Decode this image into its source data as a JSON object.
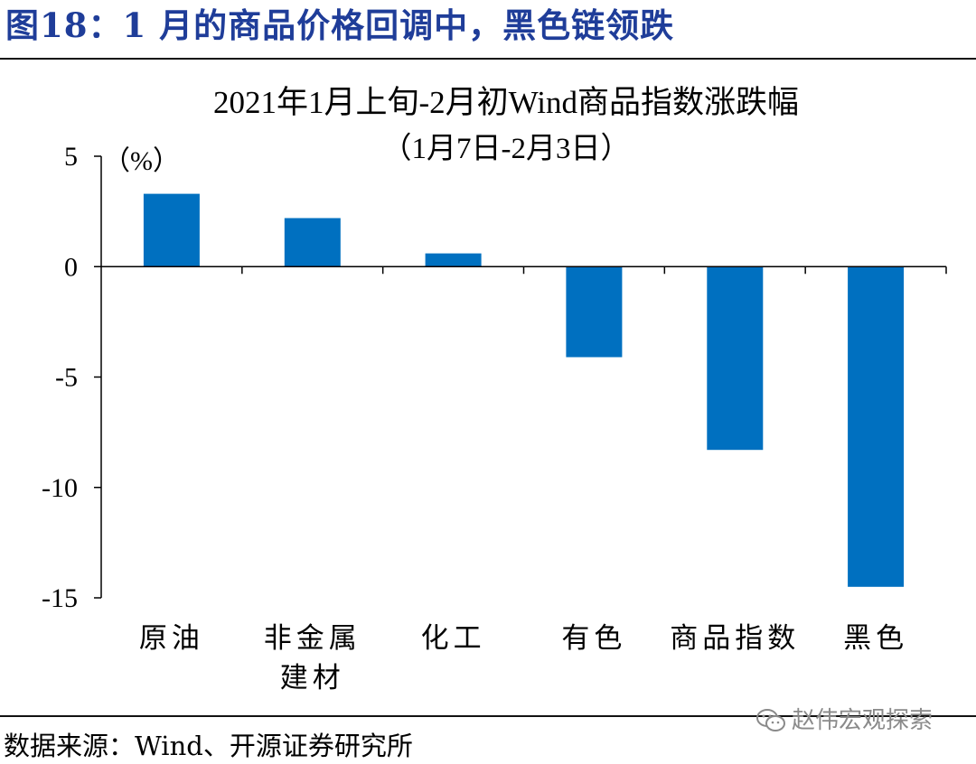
{
  "figure": {
    "label": "图18：",
    "title": "1 月的商品价格回调中，黑色链领跌"
  },
  "source": "数据来源：Wind、开源证券研究所",
  "watermark": "赵伟宏观探索",
  "colors": {
    "title": "#1f3d99",
    "bar": "#0070c0",
    "axis": "#000000"
  },
  "chart_data": {
    "type": "bar",
    "title": "2021年1月上旬-2月初Wind商品指数涨跌幅",
    "subtitle": "（1月7日-2月3日）",
    "unit_label": "（%）",
    "categories": [
      [
        "原油"
      ],
      [
        "非金属",
        "建材"
      ],
      [
        "化工"
      ],
      [
        "有色"
      ],
      [
        "商品指数"
      ],
      [
        "黑色"
      ]
    ],
    "values": [
      3.3,
      2.2,
      0.6,
      -4.1,
      -8.3,
      -14.5
    ],
    "ylim": [
      -15,
      5
    ],
    "yticks": [
      5,
      0,
      -5,
      -10,
      -15
    ],
    "ytick_labels": [
      "5",
      "0",
      "-5",
      "-10",
      "-15"
    ],
    "grid": false,
    "legend": "none"
  }
}
